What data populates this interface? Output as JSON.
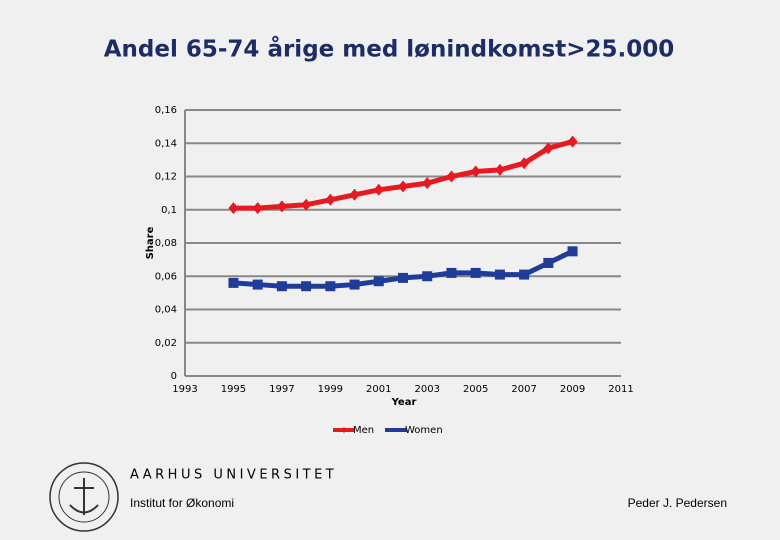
{
  "chart_data": {
    "type": "line",
    "title": "Andel 65-74 årige med lønindkomst>25.000",
    "x_label": "Year",
    "y_label": "Share",
    "x": [
      1995,
      1996,
      1997,
      1998,
      1999,
      2000,
      2001,
      2002,
      2003,
      2004,
      2005,
      2006,
      2007,
      2008,
      2009
    ],
    "series": [
      {
        "name": "Men",
        "color": "#e8191f",
        "marker": "diamond",
        "values": [
          0.101,
          0.101,
          0.102,
          0.103,
          0.106,
          0.109,
          0.112,
          0.114,
          0.116,
          0.12,
          0.123,
          0.124,
          0.128,
          0.137,
          0.141
        ]
      },
      {
        "name": "Women",
        "color": "#1f3c99",
        "marker": "square",
        "values": [
          0.056,
          0.055,
          0.054,
          0.054,
          0.054,
          0.055,
          0.057,
          0.059,
          0.06,
          0.062,
          0.062,
          0.061,
          0.061,
          0.068,
          0.075
        ]
      }
    ],
    "xlim": [
      1993,
      2011
    ],
    "xticks": [
      1993,
      1995,
      1997,
      1999,
      2001,
      2003,
      2005,
      2007,
      2009,
      2011
    ],
    "ylim": [
      0,
      0.16
    ],
    "yticks": [
      0,
      {
        "value": 0.02,
        "label": "0,02"
      },
      {
        "value": 0.04,
        "label": "0,04"
      },
      {
        "value": 0.06,
        "label": "0,06"
      },
      {
        "value": 0.08,
        "label": "0,08"
      },
      {
        "value": 0.1,
        "label": "0,1"
      },
      {
        "value": 0.12,
        "label": "0,12"
      },
      {
        "value": 0.14,
        "label": "0,14"
      },
      {
        "value": 0.16,
        "label": "0,16"
      }
    ],
    "grid": true,
    "legend": "bottom"
  },
  "footer": {
    "university": "AARHUS UNIVERSITET",
    "department": "Institut for Økonomi",
    "author": "Peder J. Pedersen"
  }
}
